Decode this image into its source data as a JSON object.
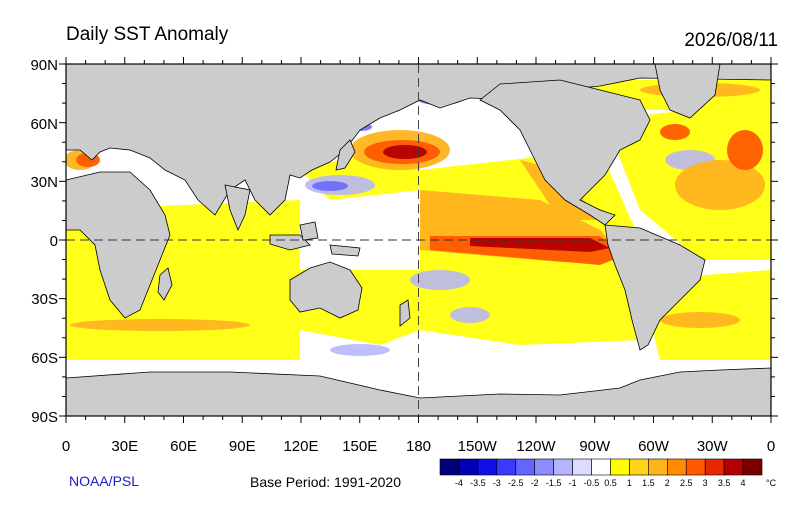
{
  "header": {
    "title": "Daily SST Anomaly",
    "date": "2026/08/11"
  },
  "footer": {
    "credit": "NOAA/PSL",
    "base_period": "Base Period: 1991-2020"
  },
  "colorbar": {
    "unit": "°C",
    "boundaries": [
      "-4",
      "-3.5",
      "-3",
      "-2.5",
      "-2",
      "-1.5",
      "-1",
      "-0.5",
      "0.5",
      "1",
      "1.5",
      "2",
      "2.5",
      "3",
      "3.5",
      "4"
    ],
    "colors": [
      "#00007a",
      "#0000b4",
      "#1010e6",
      "#3a3aff",
      "#6464ff",
      "#8c8cff",
      "#b4b4ff",
      "#dcdcff",
      "#ffffff",
      "#ffff00",
      "#ffd21e",
      "#ffb41e",
      "#ff8c00",
      "#ff5a00",
      "#e62800",
      "#b40000",
      "#7a0000"
    ]
  },
  "axes": {
    "lat_labels": [
      "90N",
      "60N",
      "30N",
      "0",
      "30S",
      "60S",
      "90S"
    ],
    "lon_labels": [
      "0",
      "30E",
      "60E",
      "90E",
      "120E",
      "150E",
      "180",
      "150W",
      "120W",
      "90W",
      "60W",
      "30W",
      "0"
    ]
  },
  "colors": {
    "land": "#cccccc",
    "coast": "#000000",
    "ocean_base": "#fffde0"
  }
}
